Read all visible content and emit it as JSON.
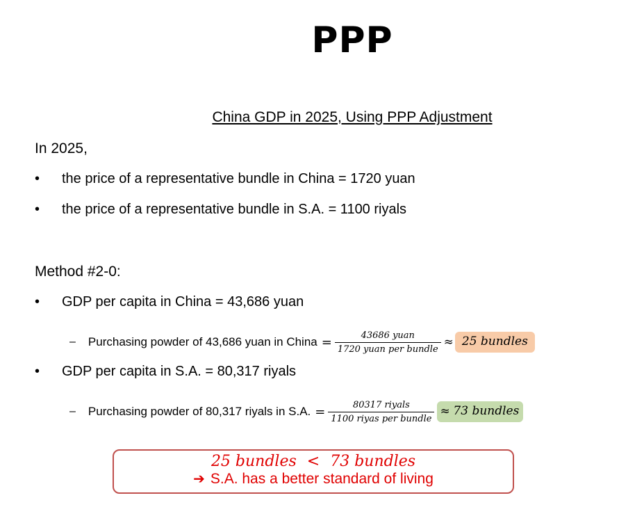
{
  "title": "PPP",
  "subtitle": "China GDP in 2025, Using PPP Adjustment",
  "intro": "In 2025,",
  "bullets": [
    "the price of a representative bundle in China = 1720 yuan",
    "the price of a representative bundle in S.A. = 1100 riyals"
  ],
  "method_label": "Method #2-0:",
  "china": {
    "gdp_line": "GDP per capita in China = 43,686 yuan",
    "purchase_text": "Purchasing powder of 43,686 yuan in China",
    "numerator": "43686 yuan",
    "denominator": "1720 yuan per bundle",
    "result": "25 bundles",
    "result_color": "#f8cba8"
  },
  "sa": {
    "gdp_line": "GDP per capita in S.A. = 80,317 riyals",
    "purchase_text": "Purchasing powder of 80,317 riyals in S.A.",
    "numerator": "80317 riyals",
    "denominator": "1100 riyas per bundle",
    "result": "73 bundles",
    "result_color": "#c5dbad"
  },
  "symbols": {
    "bullet": "•",
    "dash": "–",
    "equals": "=",
    "approx": "≈",
    "less_than": "<"
  },
  "conclusion": {
    "left": "25 bundles",
    "right": "73 bundles",
    "text": "S.A. has a better standard of living",
    "arrow_icon": "➔",
    "color": "#e00000",
    "border_color": "#c0504d"
  }
}
